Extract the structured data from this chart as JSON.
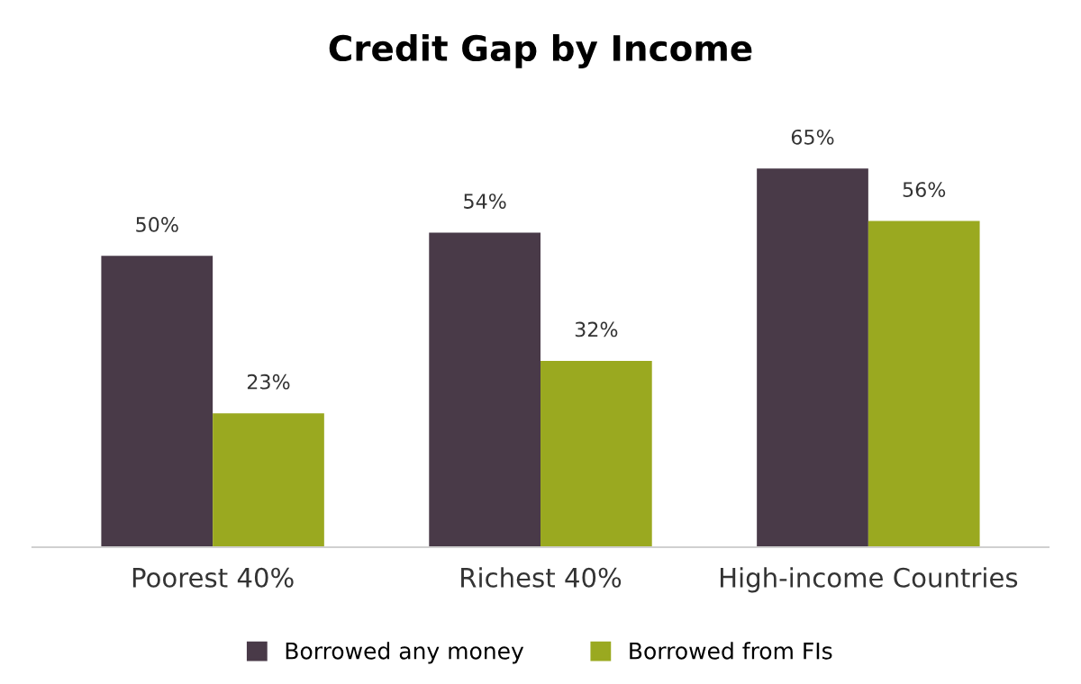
{
  "chart_data": {
    "type": "bar",
    "title": "Credit Gap by Income",
    "categories": [
      "Poorest 40%",
      "Richest 40%",
      "High-income Countries"
    ],
    "series": [
      {
        "name": "Borrowed any money",
        "color": "#493a48",
        "values": [
          50,
          54,
          65
        ],
        "value_labels": [
          "50%",
          "54%",
          "65%"
        ]
      },
      {
        "name": "Borrowed from FIs",
        "color": "#9aa920",
        "values": [
          23,
          32,
          56
        ],
        "value_labels": [
          "23%",
          "32%",
          "56%"
        ]
      }
    ],
    "legend": "bottom"
  }
}
